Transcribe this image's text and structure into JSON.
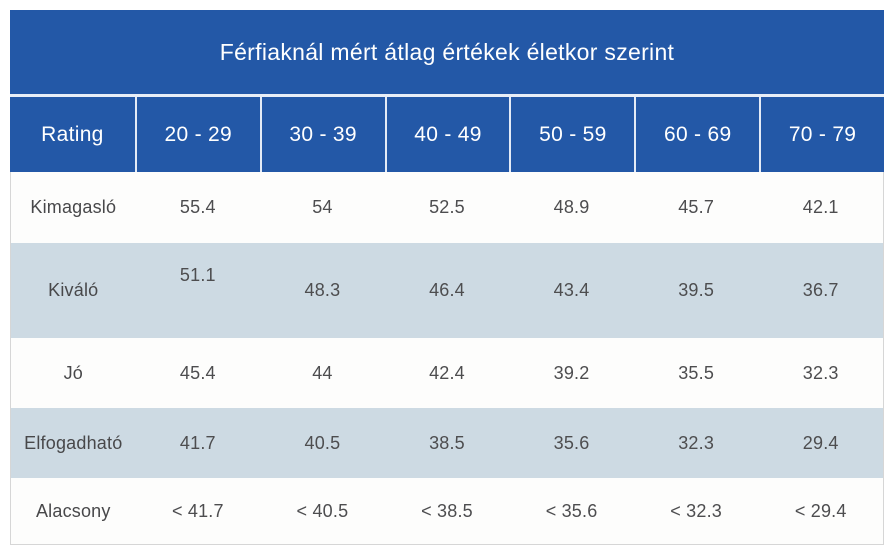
{
  "colors": {
    "header_bg": "#2358a7",
    "header_text": "#ffffff",
    "header_divider": "#e4ebf7",
    "separator": "#e8eef7",
    "alt_row_bg": "#cddae3",
    "table_border": "#d6d6d6",
    "body_text": "#4d4d4f"
  },
  "chart_data": {
    "type": "table",
    "title": "Férfiaknál mért átlag értékek életkor szerint",
    "columns": [
      "Rating",
      "20 - 29",
      "30 - 39",
      "40 - 49",
      "50 - 59",
      "60 - 69",
      "70 - 79"
    ],
    "rows": [
      {
        "label": "Kimagasló",
        "values": [
          "55.4",
          "54",
          "52.5",
          "48.9",
          "45.7",
          "42.1"
        ]
      },
      {
        "label": "Kiváló",
        "values": [
          "51.1",
          "48.3",
          "46.4",
          "43.4",
          "39.5",
          "36.7"
        ]
      },
      {
        "label": "Jó",
        "values": [
          "45.4",
          "44",
          "42.4",
          "39.2",
          "35.5",
          "32.3"
        ]
      },
      {
        "label": "Elfogadható",
        "values": [
          "41.7",
          "40.5",
          "38.5",
          "35.6",
          "32.3",
          "29.4"
        ]
      },
      {
        "label": "Alacsony",
        "values": [
          "< 41.7",
          "< 40.5",
          "< 38.5",
          "< 35.6",
          "< 32.3",
          "< 29.4"
        ]
      }
    ],
    "layout": {
      "legend": "none",
      "grid": "alternating-row-shading",
      "header_position": "top"
    }
  }
}
